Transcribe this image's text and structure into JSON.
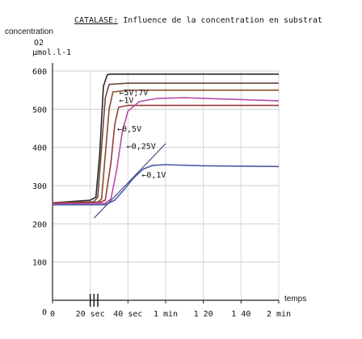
{
  "chart_data": {
    "type": "line",
    "title": {
      "underlined": "CATALASE:",
      "rest": " Influence de la concentration en substrat"
    },
    "ylabel": "concentration",
    "yunit_line1": "O2",
    "yunit_line2": "µmol.l-1",
    "xlabel": "temps",
    "ylim": [
      0,
      600
    ],
    "yticks": [
      {
        "value": 600,
        "label": "600"
      },
      {
        "value": 500,
        "label": "500"
      },
      {
        "value": 400,
        "label": "400"
      },
      {
        "value": 300,
        "label": "300"
      },
      {
        "value": 200,
        "label": "200"
      },
      {
        "value": 100,
        "label": "100"
      },
      {
        "value": 0,
        "label": "0"
      }
    ],
    "xlim": [
      0,
      120
    ],
    "xticks": [
      {
        "value": 0,
        "label": "0"
      },
      {
        "value": 20,
        "label": "20 sec"
      },
      {
        "value": 40,
        "label": "40 sec"
      },
      {
        "value": 60,
        "label": "1 min"
      },
      {
        "value": 80,
        "label": "1 20"
      },
      {
        "value": 100,
        "label": "1 40"
      },
      {
        "value": 120,
        "label": "2 min"
      }
    ],
    "injection_marks": [
      20,
      22,
      24
    ],
    "grid": true,
    "series": [
      {
        "name": "5V;7V",
        "color": "#2b2b2b",
        "annotation_at": [
          31,
          545
        ],
        "points": [
          [
            0,
            255
          ],
          [
            20,
            262
          ],
          [
            23,
            270
          ],
          [
            25,
            380
          ],
          [
            27,
            560
          ],
          [
            29,
            590
          ],
          [
            31,
            592
          ],
          [
            60,
            592
          ],
          [
            120,
            592
          ]
        ]
      },
      {
        "name": "5V;7V",
        "color": "#6b4a3a",
        "annotation_at": [
          31,
          545
        ],
        "points": [
          [
            0,
            255
          ],
          [
            22,
            258
          ],
          [
            24,
            270
          ],
          [
            26,
            400
          ],
          [
            28,
            530
          ],
          [
            30,
            565
          ],
          [
            40,
            568
          ],
          [
            120,
            568
          ]
        ]
      },
      {
        "name": "1V",
        "color": "#8a4a2a",
        "annotation_at": [
          31,
          525
        ],
        "points": [
          [
            0,
            255
          ],
          [
            24,
            257
          ],
          [
            26,
            265
          ],
          [
            28,
            380
          ],
          [
            30,
            500
          ],
          [
            32,
            545
          ],
          [
            40,
            550
          ],
          [
            120,
            550
          ]
        ]
      },
      {
        "name": "0,5V",
        "color": "#9a3a3a",
        "annotation_at": [
          30,
          450
        ],
        "points": [
          [
            0,
            255
          ],
          [
            25,
            256
          ],
          [
            28,
            262
          ],
          [
            31,
            360
          ],
          [
            33,
            460
          ],
          [
            35,
            505
          ],
          [
            40,
            510
          ],
          [
            120,
            510
          ]
        ]
      },
      {
        "name": "0,25V",
        "color": "#b84aa8",
        "annotation_at": [
          35,
          405
        ],
        "points": [
          [
            0,
            252
          ],
          [
            28,
            254
          ],
          [
            31,
            265
          ],
          [
            34,
            340
          ],
          [
            37,
            440
          ],
          [
            40,
            495
          ],
          [
            46,
            520
          ],
          [
            55,
            528
          ],
          [
            70,
            530
          ],
          [
            120,
            522
          ]
        ]
      },
      {
        "name": "0,1V",
        "color": "#4a5aa8",
        "annotation_at": [
          43,
          330
        ],
        "points": [
          [
            0,
            250
          ],
          [
            28,
            250
          ],
          [
            33,
            262
          ],
          [
            38,
            290
          ],
          [
            43,
            320
          ],
          [
            48,
            343
          ],
          [
            53,
            353
          ],
          [
            60,
            355
          ],
          [
            80,
            352
          ],
          [
            120,
            350
          ]
        ]
      }
    ],
    "tangent": {
      "color": "#2a2a7a",
      "points": [
        [
          22,
          215
        ],
        [
          60,
          410
        ]
      ]
    }
  }
}
